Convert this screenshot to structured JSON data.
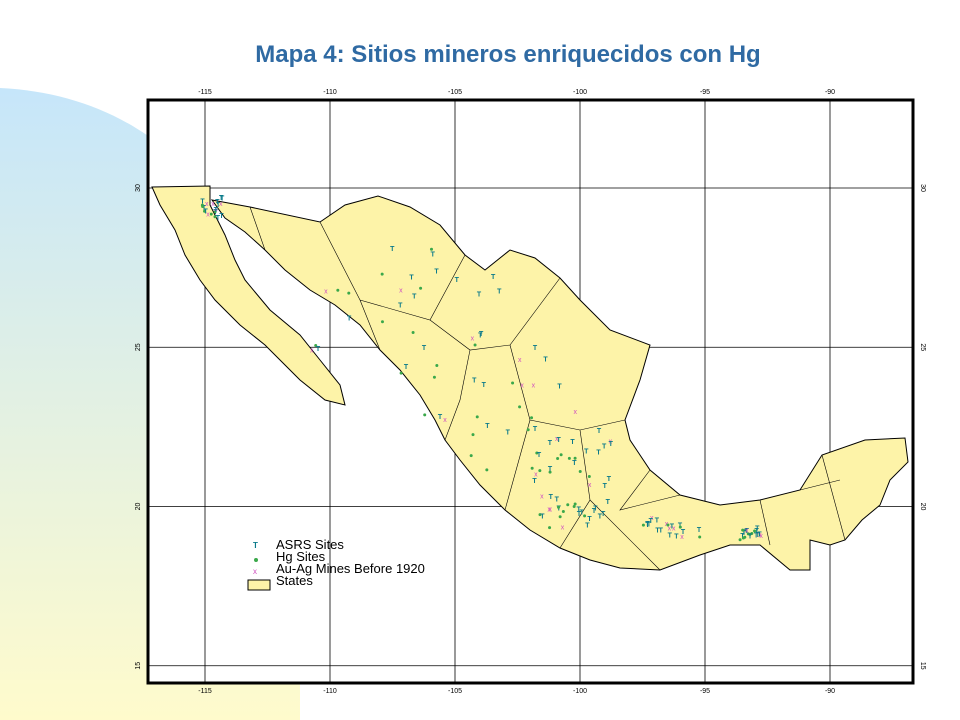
{
  "header": {
    "title": "Mapa 4:  Sitios mineros enriquecidos con Hg"
  },
  "map": {
    "lon_ticks": [
      -115,
      -110,
      -105,
      -100,
      -95,
      -90
    ],
    "lat_ticks": [
      30,
      25,
      20,
      15
    ]
  },
  "legend": {
    "items": [
      "ASRS Sites",
      "Hg Sites",
      "Au-Ag Mines Before 1920",
      "States"
    ]
  }
}
